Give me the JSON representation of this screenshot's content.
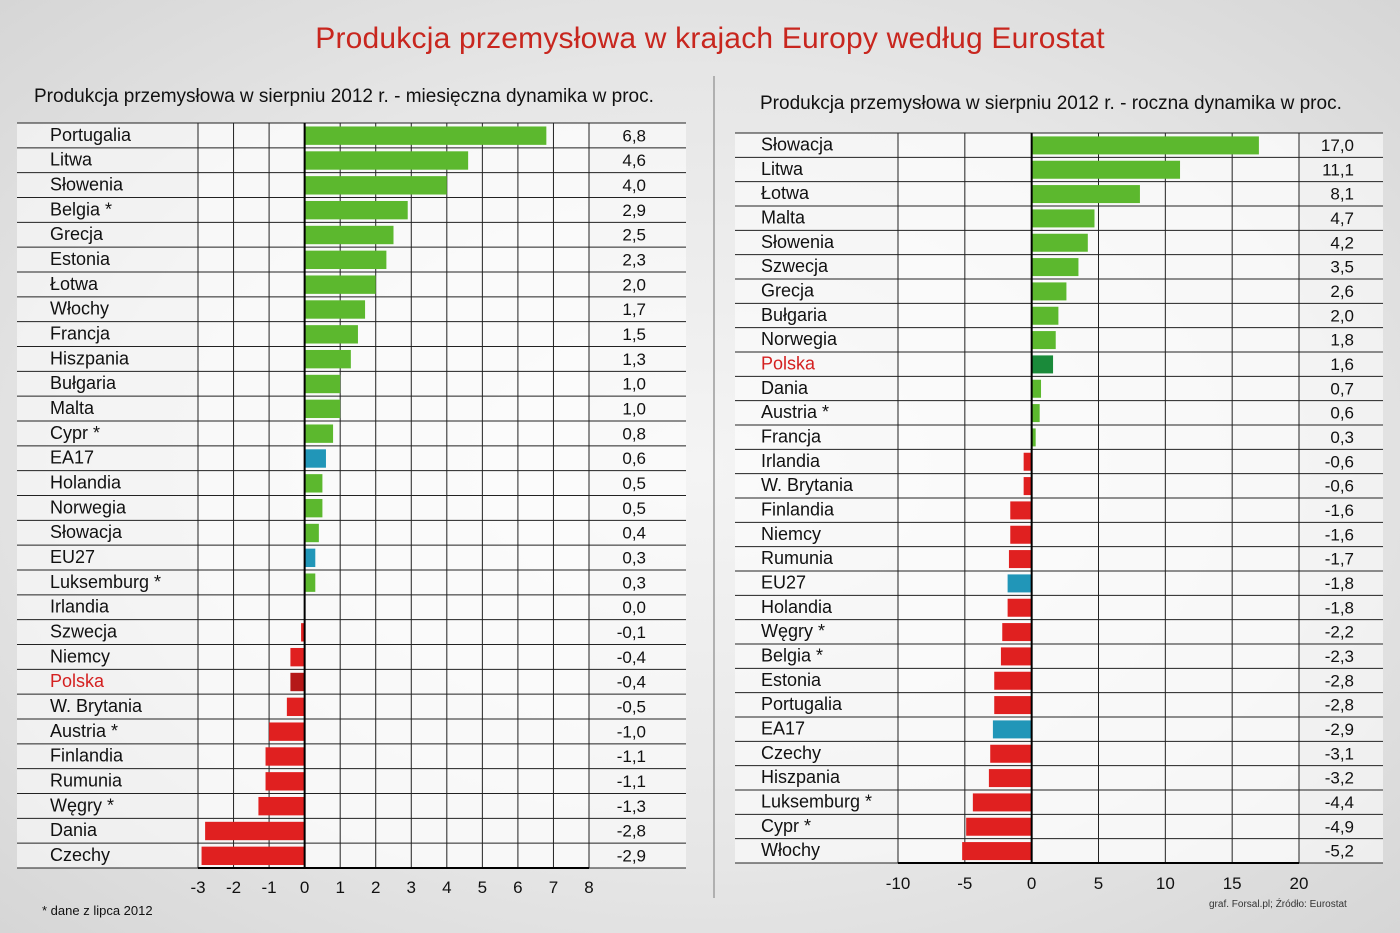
{
  "title": "Produkcja przemysłowa w krajach Europy według Eurostat",
  "footnote": "* dane z lipca 2012",
  "source": "graf. Forsal.pl; Źródło: Eurostat",
  "colors": {
    "positive": "#5cb82e",
    "negative": "#e02020",
    "aggregate": "#2196b8",
    "poland_positive": "#1a8a3a",
    "poland_negative": "#b51818",
    "poland_label": "#d42020"
  },
  "chart_data": [
    {
      "type": "bar",
      "orientation": "horizontal",
      "title": "Produkcja przemysłowa w sierpniu 2012 r. - miesięczna dynamika w proc.",
      "xlim": [
        -3,
        8
      ],
      "xticks": [
        -3,
        -2,
        -1,
        0,
        1,
        2,
        3,
        4,
        5,
        6,
        7,
        8
      ],
      "grid": true,
      "categories": [
        "Portugalia",
        "Litwa",
        "Słowenia",
        "Belgia *",
        "Grecja",
        "Estonia",
        "Łotwa",
        "Włochy",
        "Francja",
        "Hiszpania",
        "Bułgaria",
        "Malta",
        "Cypr *",
        "EA17",
        "Holandia",
        "Norwegia",
        "Słowacja",
        "EU27",
        "Luksemburg *",
        "Irlandia",
        "Szwecja",
        "Niemcy",
        "Polska",
        "W. Brytania",
        "Austria *",
        "Finlandia",
        "Rumunia",
        "Węgry *",
        "Dania",
        "Czechy"
      ],
      "values": [
        6.8,
        4.6,
        4.0,
        2.9,
        2.5,
        2.3,
        2.0,
        1.7,
        1.5,
        1.3,
        1.0,
        1.0,
        0.8,
        0.6,
        0.5,
        0.5,
        0.4,
        0.3,
        0.3,
        0.0,
        -0.1,
        -0.4,
        -0.4,
        -0.5,
        -1.0,
        -1.1,
        -1.1,
        -1.3,
        -2.8,
        -2.9
      ],
      "value_labels": [
        "6,8",
        "4,6",
        "4,0",
        "2,9",
        "2,5",
        "2,3",
        "2,0",
        "1,7",
        "1,5",
        "1,3",
        "1,0",
        "1,0",
        "0,8",
        "0,6",
        "0,5",
        "0,5",
        "0,4",
        "0,3",
        "0,3",
        "0,0",
        "-0,1",
        "-0,4",
        "-0,4",
        "-0,5",
        "-1,0",
        "-1,1",
        "-1,1",
        "-1,3",
        "-2,8",
        "-2,9"
      ],
      "highlight": "Polska",
      "aggregates": [
        "EA17",
        "EU27"
      ]
    },
    {
      "type": "bar",
      "orientation": "horizontal",
      "title": "Produkcja przemysłowa w sierpniu 2012 r. - roczna dynamika w proc.",
      "xlim": [
        -10,
        20
      ],
      "xticks": [
        -10,
        -5,
        0,
        5,
        10,
        15,
        20
      ],
      "grid": true,
      "categories": [
        "Słowacja",
        "Litwa",
        "Łotwa",
        "Malta",
        "Słowenia",
        "Szwecja",
        "Grecja",
        "Bułgaria",
        "Norwegia",
        "Polska",
        "Dania",
        "Austria *",
        "Francja",
        "Irlandia",
        "W. Brytania",
        "Finlandia",
        "Niemcy",
        "Rumunia",
        "EU27",
        "Holandia",
        "Węgry *",
        "Belgia *",
        "Estonia",
        "Portugalia",
        "EA17",
        "Czechy",
        "Hiszpania",
        "Luksemburg *",
        "Cypr *",
        "Włochy"
      ],
      "values": [
        17.0,
        11.1,
        8.1,
        4.7,
        4.2,
        3.5,
        2.6,
        2.0,
        1.8,
        1.6,
        0.7,
        0.6,
        0.3,
        -0.6,
        -0.6,
        -1.6,
        -1.6,
        -1.7,
        -1.8,
        -1.8,
        -2.2,
        -2.3,
        -2.8,
        -2.8,
        -2.9,
        -3.1,
        -3.2,
        -4.4,
        -4.9,
        -5.2
      ],
      "value_labels": [
        "17,0",
        "11,1",
        "8,1",
        "4,7",
        "4,2",
        "3,5",
        "2,6",
        "2,0",
        "1,8",
        "1,6",
        "0,7",
        "0,6",
        "0,3",
        "-0,6",
        "-0,6",
        "-1,6",
        "-1,6",
        "-1,7",
        "-1,8",
        "-1,8",
        "-2,2",
        "-2,3",
        "-2,8",
        "-2,8",
        "-2,9",
        "-3,1",
        "-3,2",
        "-4,4",
        "-4,9",
        "-5,2"
      ],
      "highlight": "Polska",
      "aggregates": [
        "EA17",
        "EU27"
      ]
    }
  ]
}
